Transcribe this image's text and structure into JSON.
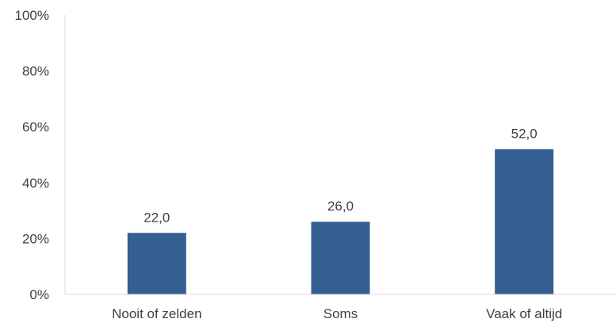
{
  "chart_data": {
    "type": "bar",
    "categories": [
      "Nooit of zelden",
      "Soms",
      "Vaak of altijd"
    ],
    "values": [
      22.0,
      26.0,
      52.0
    ],
    "data_labels": [
      "22,0",
      "26,0",
      "52,0"
    ],
    "y_ticks": [
      0,
      20,
      40,
      60,
      80,
      100
    ],
    "y_tick_labels": [
      "0%",
      "20%",
      "40%",
      "60%",
      "80%",
      "100%"
    ],
    "ylim": [
      0,
      100
    ],
    "grid": false,
    "legend": "none",
    "bar_color": "#335f91",
    "axis_color": "#d9d9d9",
    "text_color": "#404040"
  }
}
